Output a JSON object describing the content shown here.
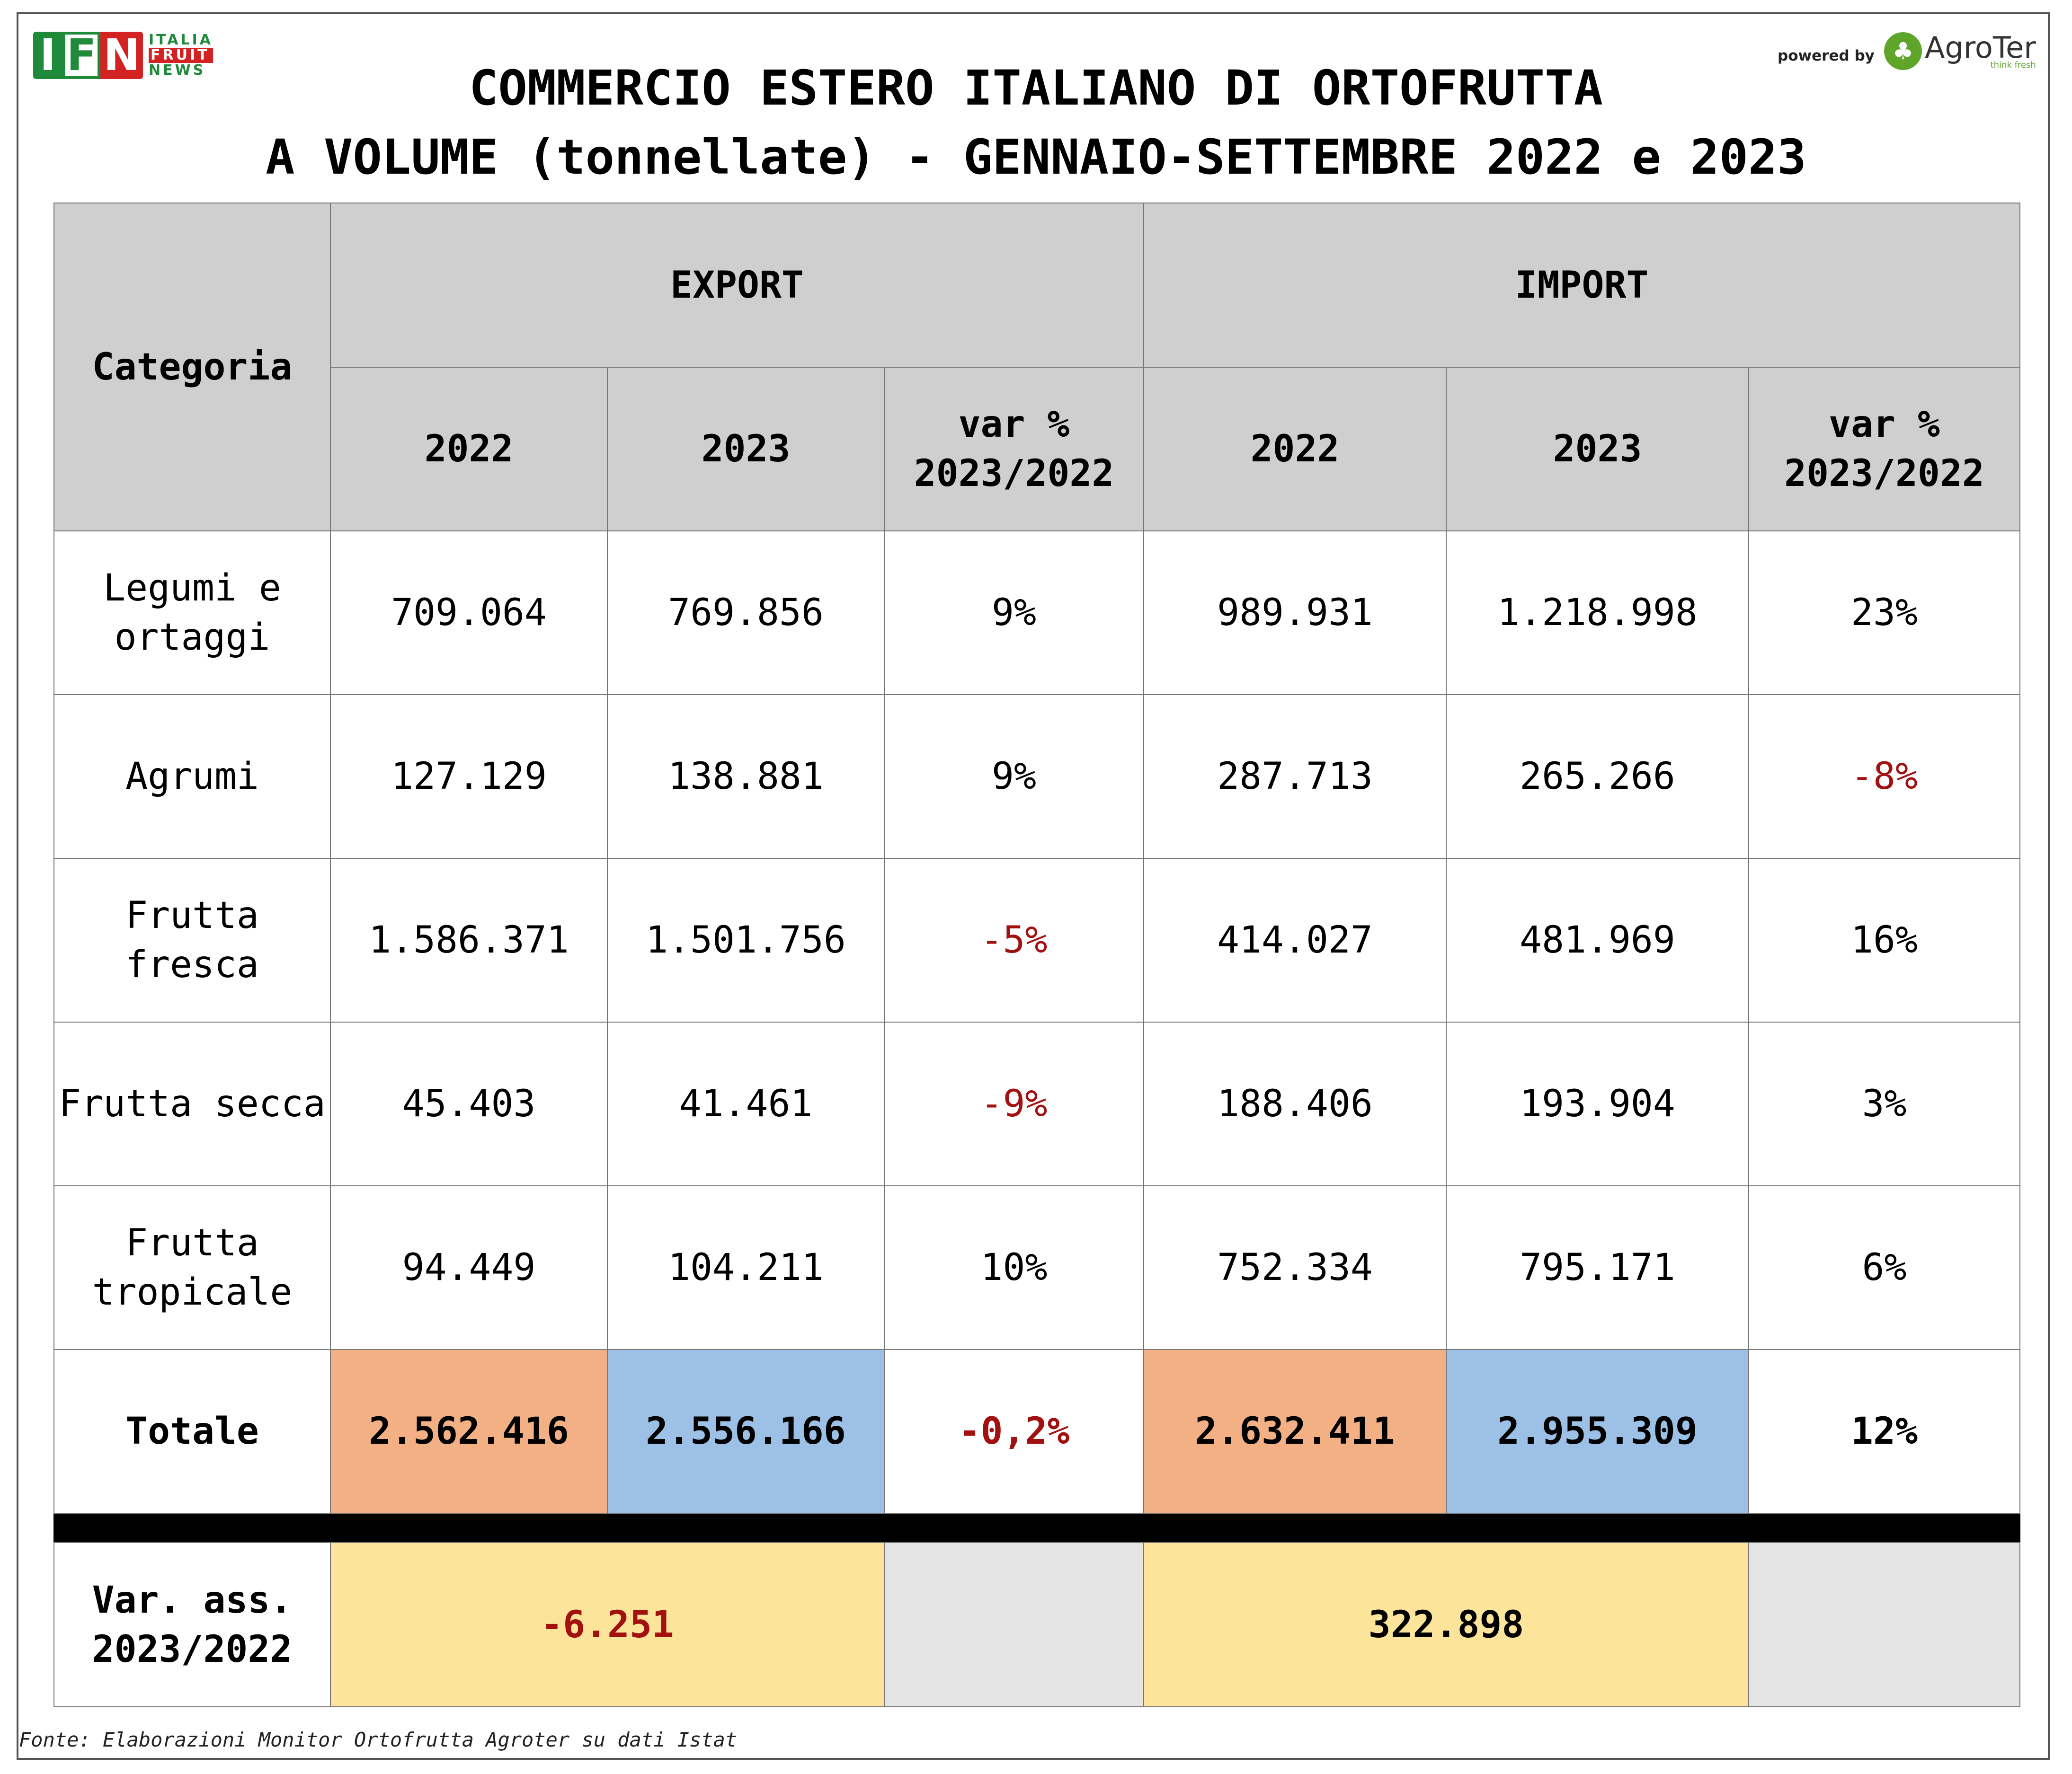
{
  "logos": {
    "ifn_letters": [
      "I",
      "F",
      "N"
    ],
    "ifn_words": [
      "ITALIA",
      "FRUIT",
      "NEWS"
    ],
    "powered_by": "powered by",
    "agroter_name": "AgroTer",
    "agroter_tagline": "think fresh"
  },
  "title": {
    "line1": "COMMERCIO ESTERO ITALIANO DI ORTOFRUTTA",
    "line2": "A VOLUME (tonnellate) - GENNAIO-SETTEMBRE 2022 e 2023"
  },
  "table": {
    "header": {
      "categoria": "Categoria",
      "export": "EXPORT",
      "import": "IMPORT",
      "export_cols": [
        "2022",
        "2023",
        "var %\n2023/2022"
      ],
      "import_cols": [
        "2022",
        "2023",
        "var %\n2023/2022"
      ]
    },
    "rows": [
      {
        "categoria": "Legumi e\nortaggi",
        "exp_2022": "709.064",
        "exp_2023": "769.856",
        "exp_var": "9%",
        "imp_2022": "989.931",
        "imp_2023": "1.218.998",
        "imp_var": "23%"
      },
      {
        "categoria": "Agrumi",
        "exp_2022": "127.129",
        "exp_2023": "138.881",
        "exp_var": "9%",
        "imp_2022": "287.713",
        "imp_2023": "265.266",
        "imp_var": "-8%"
      },
      {
        "categoria": "Frutta\nfresca",
        "exp_2022": "1.586.371",
        "exp_2023": "1.501.756",
        "exp_var": "-5%",
        "imp_2022": "414.027",
        "imp_2023": "481.969",
        "imp_var": "16%"
      },
      {
        "categoria": "Frutta secca",
        "exp_2022": "45.403",
        "exp_2023": "41.461",
        "exp_var": "-9%",
        "imp_2022": "188.406",
        "imp_2023": "193.904",
        "imp_var": "3%"
      },
      {
        "categoria": "Frutta\ntropicale",
        "exp_2022": "94.449",
        "exp_2023": "104.211",
        "exp_var": "10%",
        "imp_2022": "752.334",
        "imp_2023": "795.171",
        "imp_var": "6%"
      }
    ],
    "total": {
      "categoria": "Totale",
      "exp_2022": "2.562.416",
      "exp_2023": "2.556.166",
      "exp_var": "-0,2%",
      "imp_2022": "2.632.411",
      "imp_2023": "2.955.309",
      "imp_var": "12%"
    },
    "var_ass": {
      "label": "Var. ass.\n2023/2022",
      "export": "-6.251",
      "import": "322.898"
    }
  },
  "source": "Fonte: Elaborazioni Monitor Ortofrutta Agroter su dati Istat",
  "colors": {
    "header_bg": "#d0cfd0",
    "total_2022_bg": "#f3b085",
    "total_2023_bg": "#9cc0e6",
    "var_ass_bg": "#fde49b",
    "negative_text": "#a21010"
  }
}
